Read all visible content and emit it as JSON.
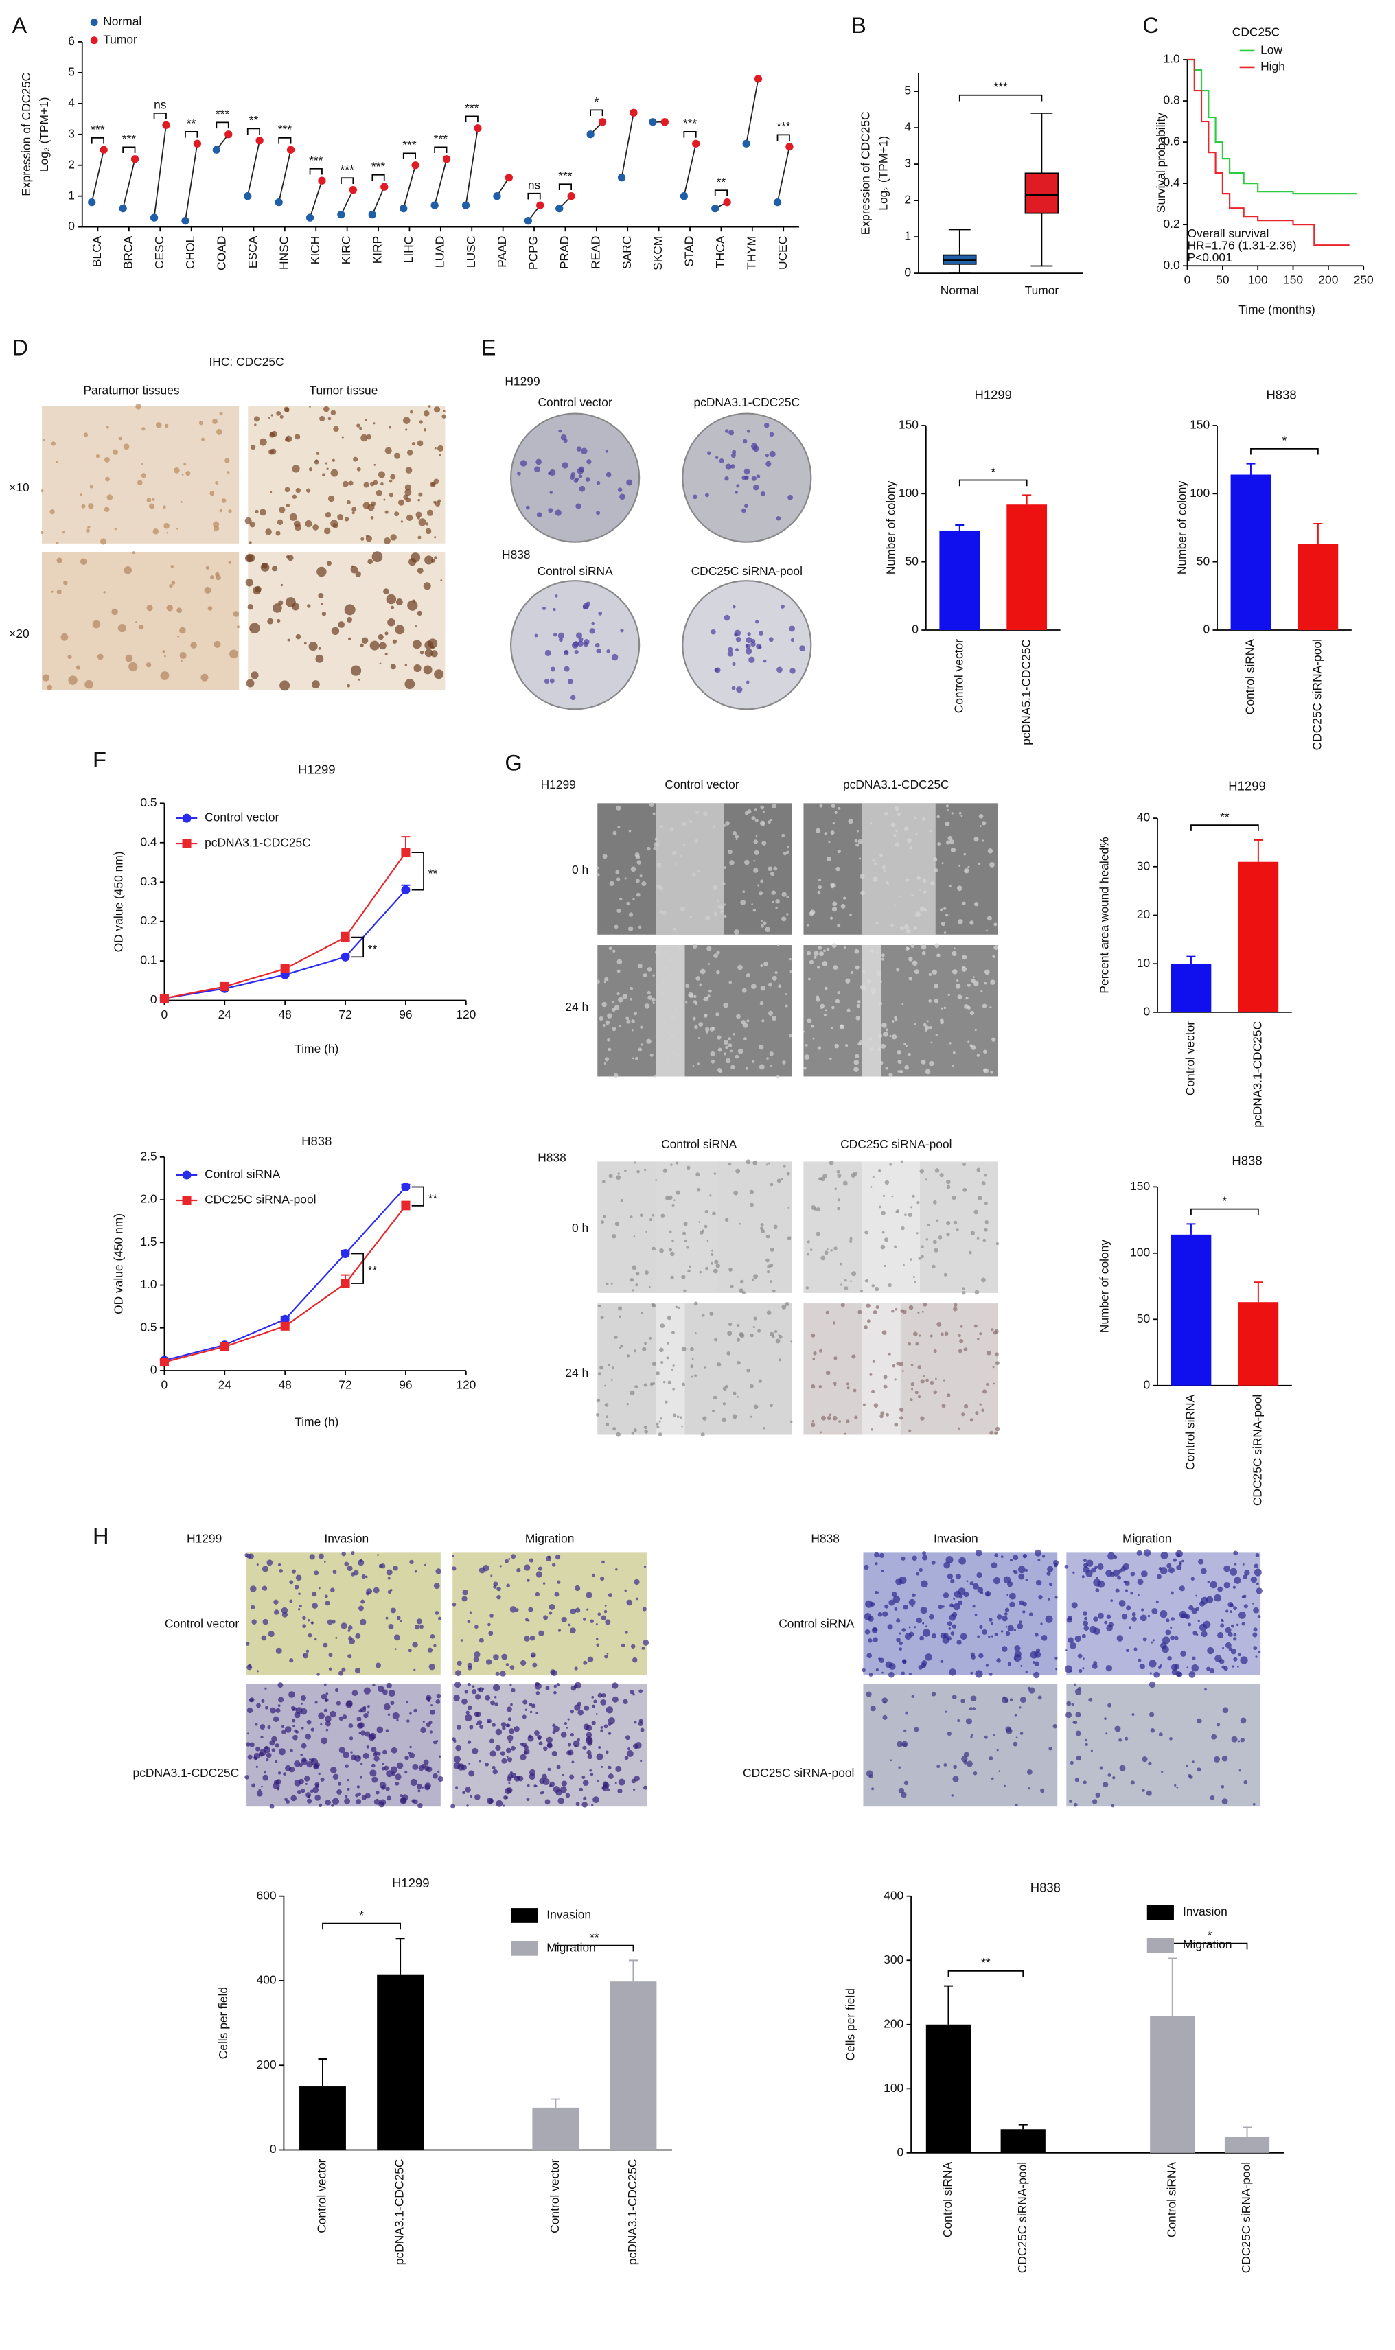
{
  "chart_data": [
    {
      "type": "paired-dot",
      "panel": "A",
      "y_label": [
        "Expression of CDC25C",
        "Log₂ (TPM+1)"
      ],
      "categories": [
        "BLCA",
        "BRCA",
        "CESC",
        "CHOL",
        "COAD",
        "ESCA",
        "HNSC",
        "KICH",
        "KIRC",
        "KIRP",
        "LIHC",
        "LUAD",
        "LUSC",
        "PAAD",
        "PCPG",
        "PRAD",
        "READ",
        "SARC",
        "SKCM",
        "STAD",
        "THCA",
        "THYM",
        "UCEC"
      ],
      "series": [
        {
          "name": "Normal",
          "color": "#1f5fa8",
          "values": [
            0.8,
            0.6,
            0.3,
            0.2,
            2.5,
            1.0,
            0.8,
            0.3,
            0.4,
            0.4,
            0.6,
            0.7,
            0.7,
            1.0,
            0.2,
            0.6,
            3.0,
            1.6,
            3.4,
            1.0,
            0.6,
            2.7,
            0.8
          ]
        },
        {
          "name": "Tumor",
          "color": "#e01b24",
          "values": [
            2.5,
            2.2,
            3.3,
            2.7,
            3.0,
            2.8,
            2.5,
            1.5,
            1.2,
            1.3,
            2.0,
            2.2,
            3.2,
            1.6,
            0.7,
            1.0,
            3.4,
            3.7,
            3.4,
            2.7,
            0.8,
            4.8,
            2.6
          ]
        }
      ],
      "significance": [
        "***",
        "***",
        "ns",
        "**",
        "***",
        "**",
        "***",
        "***",
        "***",
        "***",
        "***",
        "***",
        "***",
        null,
        "ns",
        "***",
        "*",
        null,
        null,
        "***",
        "**",
        null,
        "***"
      ],
      "ylim": [
        0,
        6
      ],
      "yticks": [
        0,
        1,
        2,
        3,
        4,
        5,
        6
      ]
    },
    {
      "type": "box",
      "panel": "B",
      "y_label": [
        "Expression of CDC25C",
        "Log₂ (TPM+1)"
      ],
      "categories": [
        "Normal",
        "Tumor"
      ],
      "colors": [
        "#1f5fa8",
        "#e01b24"
      ],
      "boxes": [
        {
          "min": 0,
          "q1": 0.25,
          "median": 0.35,
          "q3": 0.5,
          "max": 1.2
        },
        {
          "min": 0.2,
          "q1": 1.65,
          "median": 2.15,
          "q3": 2.75,
          "max": 4.4
        }
      ],
      "significance": "***",
      "ylim": [
        0,
        5.5
      ],
      "yticks": [
        0,
        1,
        2,
        3,
        4,
        5
      ]
    },
    {
      "type": "km",
      "panel": "C",
      "y_label": "Survival probability",
      "x_label": "Time (months)",
      "legend_title": "CDC25C",
      "series": [
        {
          "name": "Low",
          "color": "#2ecc40",
          "x": [
            0,
            10,
            20,
            30,
            40,
            50,
            60,
            80,
            100,
            150,
            200,
            240
          ],
          "values": [
            1,
            0.95,
            0.85,
            0.72,
            0.6,
            0.52,
            0.45,
            0.4,
            0.36,
            0.35,
            0.35,
            0.35
          ]
        },
        {
          "name": "High",
          "color": "#e8262b",
          "x": [
            0,
            10,
            20,
            30,
            40,
            50,
            60,
            80,
            100,
            150,
            170,
            180,
            230
          ],
          "values": [
            1,
            0.85,
            0.7,
            0.55,
            0.45,
            0.35,
            0.28,
            0.24,
            0.22,
            0.2,
            0.2,
            0.1,
            0.1
          ]
        }
      ],
      "annotations": [
        "Overall survival",
        "HR=1.76 (1.31-2.36)",
        "P<0.001"
      ],
      "xlim": [
        0,
        250
      ],
      "xticks": [
        0,
        50,
        100,
        150,
        200,
        250
      ],
      "ylim": [
        0,
        1
      ],
      "yticks": [
        {
          "value": 0,
          "label": "0.0"
        },
        0.2,
        0.4,
        0.6,
        0.8,
        {
          "value": 1,
          "label": "1.0"
        }
      ]
    },
    {
      "type": "bar",
      "title": "H1299",
      "y_label": "Number of colony",
      "categories": [
        "Control vector",
        "pcDNA5.1-CDC25C"
      ],
      "values": [
        73,
        92
      ],
      "errors": [
        4,
        7
      ],
      "colors": [
        "#1010ee",
        "#ee1111"
      ],
      "significance": "*",
      "ylim": [
        0,
        150
      ],
      "yticks": [
        0,
        50,
        100,
        150
      ]
    },
    {
      "type": "bar",
      "title": "H838",
      "y_label": "Number of colony",
      "categories": [
        "Control siRNA",
        "CDC25C siRNA-pool"
      ],
      "values": [
        114,
        63
      ],
      "errors": [
        8,
        15
      ],
      "colors": [
        "#1010ee",
        "#ee1111"
      ],
      "significance": "*",
      "ylim": [
        0,
        150
      ],
      "yticks": [
        0,
        50,
        100,
        150
      ]
    },
    {
      "type": "line",
      "panel": "F",
      "title": "H1299",
      "y_label": "OD value (450 nm)",
      "x_label": "Time (h)",
      "x": [
        0,
        24,
        48,
        72,
        96
      ],
      "series": [
        {
          "name": "Control vector",
          "color": "#2b2bf0",
          "marker": "circle",
          "values": [
            0.005,
            0.03,
            0.065,
            0.11,
            0.28
          ],
          "errors": [
            0.002,
            0.003,
            0.004,
            0.005,
            0.012
          ]
        },
        {
          "name": "pcDNA3.1-CDC25C",
          "color": "#e8262b",
          "marker": "square",
          "values": [
            0.005,
            0.035,
            0.08,
            0.16,
            0.375
          ],
          "errors": [
            0.002,
            0.004,
            0.006,
            0.012,
            0.04
          ]
        }
      ],
      "significance": [
        "**",
        "**"
      ],
      "xlim": [
        0,
        120
      ],
      "xticks": [
        0,
        24,
        48,
        72,
        96,
        120
      ],
      "ylim": [
        0,
        0.5
      ],
      "yticks": [
        0,
        0.1,
        0.2,
        0.3,
        0.4,
        0.5
      ]
    },
    {
      "type": "line",
      "title": "H838",
      "y_label": "OD value (450 nm)",
      "x_label": "Time (h)",
      "x": [
        0,
        24,
        48,
        72,
        96
      ],
      "series": [
        {
          "name": "Control siRNA",
          "color": "#2b2bf0",
          "marker": "circle",
          "values": [
            0.12,
            0.3,
            0.6,
            1.37,
            2.15
          ],
          "errors": [
            0.02,
            0.02,
            0.03,
            0.03,
            0.03
          ]
        },
        {
          "name": "CDC25C siRNA-pool",
          "color": "#e8262b",
          "marker": "square",
          "values": [
            0.1,
            0.28,
            0.52,
            1.02,
            1.93
          ],
          "errors": [
            0.02,
            0.03,
            0.04,
            0.1,
            0.05
          ]
        }
      ],
      "significance": [
        "**",
        "**"
      ],
      "xlim": [
        0,
        120
      ],
      "xticks": [
        0,
        24,
        48,
        72,
        96,
        120
      ],
      "ylim": [
        0,
        2.5
      ],
      "yticks": [
        0,
        0.5,
        {
          "value": 1,
          "label": "1.0"
        },
        1.5,
        {
          "value": 2,
          "label": "2.0"
        },
        2.5
      ]
    },
    {
      "type": "bar",
      "title": "H1299",
      "y_label": "Percent area wound healed%",
      "categories": [
        "Control vector",
        "pcDNA3.1-CDC25C"
      ],
      "values": [
        10,
        31
      ],
      "errors": [
        1.5,
        4.5
      ],
      "colors": [
        "#1010ee",
        "#ee1111"
      ],
      "significance": "**",
      "ylim": [
        0,
        40
      ],
      "yticks": [
        0,
        10,
        20,
        30,
        40
      ]
    },
    {
      "type": "bar",
      "title": "H838",
      "y_label": "Number of colony",
      "categories": [
        "Control siRNA",
        "CDC25C siRNA-pool"
      ],
      "values": [
        114,
        63
      ],
      "errors": [
        8,
        15
      ],
      "colors": [
        "#1010ee",
        "#ee1111"
      ],
      "significance": "*",
      "ylim": [
        0,
        150
      ],
      "yticks": [
        0,
        50,
        100,
        150
      ]
    },
    {
      "type": "grouped-bar",
      "title": "H1299",
      "y_label": "Cells per field",
      "categories": [
        "Control vector",
        "pcDNA3.1-CDC25C"
      ],
      "series": [
        {
          "name": "Invasion",
          "color": "#000000",
          "values": [
            150,
            415
          ],
          "errors": [
            65,
            85
          ]
        },
        {
          "name": "Migration",
          "color": "#a9a9b3",
          "values": [
            100,
            398
          ],
          "errors": [
            20,
            50
          ]
        }
      ],
      "significance": [
        "*",
        "**"
      ],
      "ylim": [
        0,
        600
      ],
      "yticks": [
        0,
        200,
        400,
        600
      ]
    },
    {
      "type": "grouped-bar",
      "title": "H838",
      "y_label": "Cells per field",
      "categories": [
        "Control siRNA",
        "CDC25C siRNA-pool"
      ],
      "series": [
        {
          "name": "Invasion",
          "color": "#000000",
          "values": [
            200,
            37
          ],
          "errors": [
            60,
            7
          ]
        },
        {
          "name": "Migration",
          "color": "#a9a9b3",
          "values": [
            213,
            25
          ],
          "errors": [
            90,
            15
          ]
        }
      ],
      "significance": [
        "**",
        "*"
      ],
      "ylim": [
        0,
        400
      ],
      "yticks": [
        0,
        100,
        200,
        300,
        400
      ]
    }
  ],
  "image_panels": [
    {
      "panel": "D",
      "title": "IHC: CDC25C",
      "columns": [
        "Paratumor tissues",
        "Tumor tissue"
      ],
      "rows": [
        "×10",
        "×20"
      ]
    },
    {
      "panel": "E",
      "groups": [
        {
          "cell_line": "H1299",
          "columns": [
            "Control vector",
            "pcDNA3.1-CDC25C"
          ]
        },
        {
          "cell_line": "H838",
          "columns": [
            "Control siRNA",
            "CDC25C siRNA-pool"
          ]
        }
      ]
    },
    {
      "panel": "G",
      "groups": [
        {
          "cell_line": "H1299",
          "columns": [
            "Control vector",
            "pcDNA3.1-CDC25C"
          ],
          "rows": [
            "0 h",
            "24 h"
          ]
        },
        {
          "cell_line": "H838",
          "columns": [
            "Control siRNA",
            "CDC25C siRNA-pool"
          ],
          "rows": [
            "0 h",
            "24 h"
          ]
        }
      ]
    },
    {
      "panel": "H",
      "groups": [
        {
          "cell_line": "H1299",
          "columns": [
            "Invasion",
            "Migration"
          ],
          "rows": [
            "Control vector",
            "pcDNA3.1-CDC25C"
          ]
        },
        {
          "cell_line": "H838",
          "columns": [
            "Invasion",
            "Migration"
          ],
          "rows": [
            "Control siRNA",
            "CDC25C siRNA-pool"
          ]
        }
      ]
    }
  ]
}
